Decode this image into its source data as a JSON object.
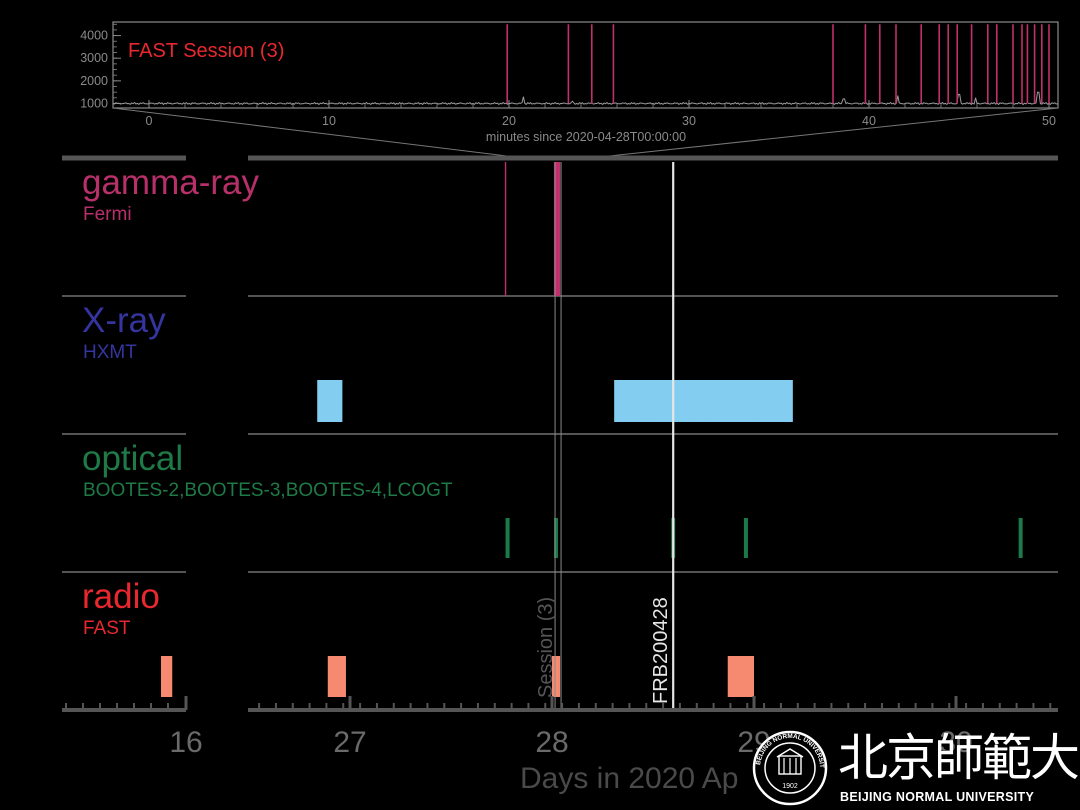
{
  "chart_data": [
    {
      "type": "line",
      "panel": "inset",
      "title": "FAST Session (3)",
      "xlabel": "minutes since 2020-04-28T00:00:00",
      "xlim": [
        -2,
        50.5
      ],
      "ylim": [
        800,
        4600
      ],
      "x_ticks": [
        0,
        10,
        20,
        30,
        40,
        50
      ],
      "y_ticks": [
        1000,
        2000,
        3000,
        4000
      ],
      "baseline_level": 1000,
      "colors": {
        "spike": "#c0306a",
        "baseline": "#9a9a9a",
        "title": "#e8282e",
        "axis": "#8a8a8a"
      },
      "spikes": [
        {
          "x": 19.9,
          "y": 4500
        },
        {
          "x": 23.3,
          "y": 4500
        },
        {
          "x": 24.6,
          "y": 4500
        },
        {
          "x": 25.8,
          "y": 4500
        },
        {
          "x": 38.0,
          "y": 4500
        },
        {
          "x": 39.8,
          "y": 4500
        },
        {
          "x": 40.6,
          "y": 4500
        },
        {
          "x": 41.5,
          "y": 4500
        },
        {
          "x": 42.9,
          "y": 4500
        },
        {
          "x": 43.9,
          "y": 4500
        },
        {
          "x": 44.4,
          "y": 4500
        },
        {
          "x": 44.9,
          "y": 4500
        },
        {
          "x": 45.7,
          "y": 4500
        },
        {
          "x": 46.6,
          "y": 4500
        },
        {
          "x": 47.1,
          "y": 4500
        },
        {
          "x": 48.0,
          "y": 4500
        },
        {
          "x": 48.5,
          "y": 4500
        },
        {
          "x": 48.8,
          "y": 4500
        },
        {
          "x": 49.2,
          "y": 4500
        },
        {
          "x": 49.6,
          "y": 4500
        },
        {
          "x": 50.0,
          "y": 4500
        }
      ],
      "noise_peaks": [
        {
          "x": 20.8,
          "y": 1300
        },
        {
          "x": 23.5,
          "y": 1100
        },
        {
          "x": 38.6,
          "y": 1200
        },
        {
          "x": 41.6,
          "y": 1350
        },
        {
          "x": 45.0,
          "y": 1400
        },
        {
          "x": 45.9,
          "y": 1250
        },
        {
          "x": 49.4,
          "y": 1500
        }
      ]
    },
    {
      "type": "timeline",
      "panel": "main",
      "xlabel": "Days in 2020 Ap",
      "tick_labels": [
        "16",
        "27",
        "28",
        "29",
        "30"
      ],
      "colors": {
        "gamma": "#c0306a",
        "xray": "#82cdf0",
        "optical": "#1c7a48",
        "radio": "#f58a70",
        "marker": "#e6e6e6",
        "session": "#8a8a8a",
        "axis": "#555555",
        "ticklabel": "#6a6a6a"
      },
      "rows": [
        {
          "key": "gamma",
          "label": "gamma-ray",
          "sublabel": "Fermi",
          "label_color": "#b8306a",
          "events": [
            27.77,
            28.015,
            28.025,
            28.03,
            28.035
          ]
        },
        {
          "key": "xray",
          "label": "X-ray",
          "sublabel": "HXMT",
          "label_color": "#3535a0",
          "events": [
            26.86,
            26.9,
            26.94,
            28.33,
            28.37,
            28.41,
            28.45,
            28.49,
            28.53,
            28.57,
            28.61,
            28.65,
            28.69,
            28.73,
            28.77,
            28.81,
            28.85,
            28.89,
            28.93,
            28.97,
            29.01,
            29.05,
            29.09,
            29.13,
            29.17
          ]
        },
        {
          "key": "optical",
          "label": "optical",
          "sublabel": "BOOTES-2,BOOTES-3,BOOTES-4,LCOGT",
          "label_color": "#1e7a46",
          "events": [
            27.78,
            28.02,
            28.6,
            28.96,
            30.32
          ]
        },
        {
          "key": "radio",
          "label": "radio",
          "sublabel": "FAST",
          "label_color": "#e8282e",
          "intervals": [
            [
              15.8,
              15.89
            ],
            [
              26.89,
              26.98
            ],
            [
              28.0,
              28.04
            ],
            [
              28.87,
              29.0
            ]
          ]
        }
      ],
      "markers": [
        {
          "label": "FRB200428",
          "x": 28.6
        },
        {
          "label": "Session (3)",
          "x": 28.03
        }
      ]
    }
  ],
  "logo": {
    "name_cn": "北京師範大學",
    "name_en": "BEIJING NORMAL UNIVERSITY",
    "seal_text": "BEIJING NORMAL UNIVERSITY",
    "seal_year": "1902"
  }
}
